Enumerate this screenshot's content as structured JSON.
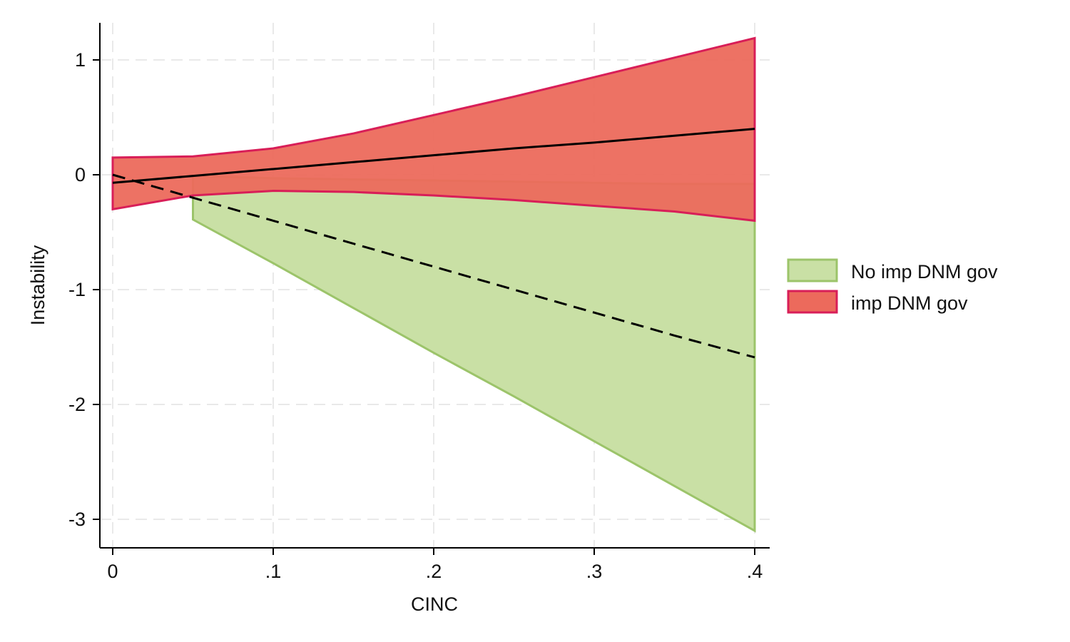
{
  "chart_data": {
    "type": "area",
    "xlabel": "CINC",
    "ylabel": "Instability",
    "xlim": [
      -0.008,
      0.408
    ],
    "ylim": [
      -3.32,
      1.32
    ],
    "x_ticks": [
      0,
      0.1,
      0.2,
      0.3,
      0.4
    ],
    "x_tick_labels": [
      "0",
      ".1",
      ".2",
      ".3",
      ".4"
    ],
    "y_ticks": [
      1,
      0,
      -1,
      -2,
      -3
    ],
    "y_tick_labels": [
      "1",
      "0",
      "-1",
      "-2",
      "-3"
    ],
    "grid": true,
    "legend_position": "right",
    "series": [
      {
        "name": "No imp DNM gov",
        "fill_color": "#c9e0a5",
        "edge_color": "#9cc46a",
        "line_style": "dashed",
        "x": [
          0.05,
          0.1,
          0.15,
          0.2,
          0.25,
          0.3,
          0.35,
          0.4
        ],
        "estimate": [
          -0.2,
          -0.4,
          -0.6,
          -0.8,
          -1.0,
          -1.2,
          -1.4,
          -1.59
        ],
        "lower": [
          -0.39,
          -0.77,
          -1.16,
          -1.55,
          -1.93,
          -2.32,
          -2.71,
          -3.1
        ],
        "upper": [
          -0.01,
          -0.03,
          -0.04,
          -0.05,
          -0.06,
          -0.07,
          -0.08,
          -0.08
        ]
      },
      {
        "name": "imp DNM gov",
        "fill_color": "#ec6a5c",
        "edge_color": "#d81e58",
        "line_style": "solid",
        "x": [
          0,
          0.05,
          0.1,
          0.15,
          0.2,
          0.25,
          0.3,
          0.35,
          0.4
        ],
        "estimate": [
          -0.07,
          -0.01,
          0.05,
          0.11,
          0.17,
          0.23,
          0.28,
          0.34,
          0.4
        ],
        "lower": [
          -0.3,
          -0.18,
          -0.14,
          -0.15,
          -0.18,
          -0.22,
          -0.27,
          -0.32,
          -0.4
        ],
        "upper": [
          0.15,
          0.16,
          0.23,
          0.36,
          0.52,
          0.68,
          0.85,
          1.02,
          1.19
        ]
      }
    ]
  }
}
